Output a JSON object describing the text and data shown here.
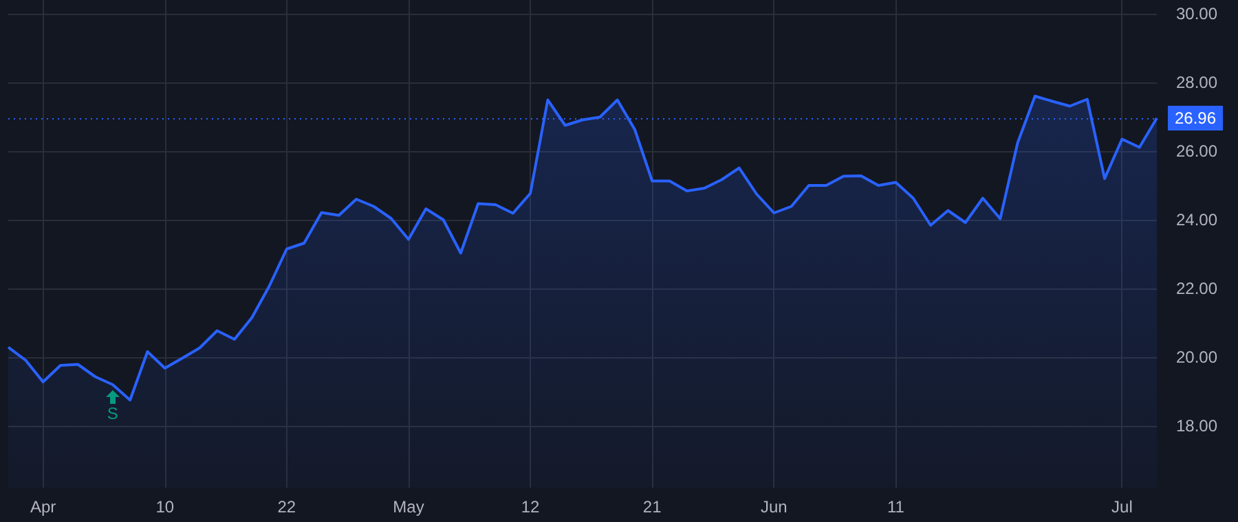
{
  "chart_data": {
    "type": "area",
    "categories": [
      null,
      null,
      "Apr",
      null,
      null,
      null,
      null,
      null,
      null,
      "10",
      null,
      null,
      null,
      null,
      null,
      null,
      "22",
      null,
      null,
      null,
      null,
      null,
      null,
      "May",
      null,
      null,
      null,
      null,
      null,
      null,
      "12",
      null,
      null,
      null,
      null,
      null,
      null,
      "21",
      null,
      null,
      null,
      null,
      null,
      null,
      "Jun",
      null,
      null,
      null,
      null,
      null,
      null,
      "11",
      null,
      null,
      null,
      null,
      null,
      null,
      null,
      null,
      null,
      null,
      null,
      null,
      "Jul",
      null,
      null
    ],
    "series": [
      {
        "color": "#2962ff",
        "values": [
          20.29,
          19.91,
          19.28,
          19.76,
          19.79,
          19.43,
          19.2,
          18.75,
          20.16,
          19.68,
          19.97,
          20.27,
          20.77,
          20.52,
          21.15,
          22.07,
          23.15,
          23.32,
          24.21,
          24.13,
          24.6,
          24.39,
          24.04,
          23.43,
          24.32,
          24.0,
          23.03,
          24.47,
          24.44,
          24.19,
          24.77,
          27.49,
          26.75,
          26.91,
          26.99,
          27.49,
          26.63,
          25.13,
          25.13,
          24.84,
          24.92,
          25.17,
          25.51,
          24.75,
          24.2,
          24.39,
          25.0,
          25.0,
          25.27,
          25.28,
          25.0,
          25.09,
          24.63,
          23.84,
          24.27,
          23.92,
          24.63,
          24.03,
          26.24,
          27.6,
          27.45,
          27.31,
          27.51,
          25.2,
          26.35,
          26.11,
          26.96
        ]
      }
    ],
    "ylim": [
      16.2,
      30.4
    ],
    "yticks": [
      {
        "value": 18,
        "label": "18.00"
      },
      {
        "value": 20,
        "label": "20.00"
      },
      {
        "value": 22,
        "label": "22.00"
      },
      {
        "value": 24,
        "label": "24.00"
      },
      {
        "value": 26,
        "label": "26.00"
      },
      {
        "value": 28,
        "label": "28.00"
      },
      {
        "value": 30,
        "label": "30.00"
      }
    ],
    "ref_lines": [
      {
        "axis": "y",
        "value": 26.96,
        "label": "26.96",
        "color": "#2962ff",
        "line_style": "dotted"
      }
    ],
    "annotations": [
      "S"
    ],
    "grid": true
  }
}
